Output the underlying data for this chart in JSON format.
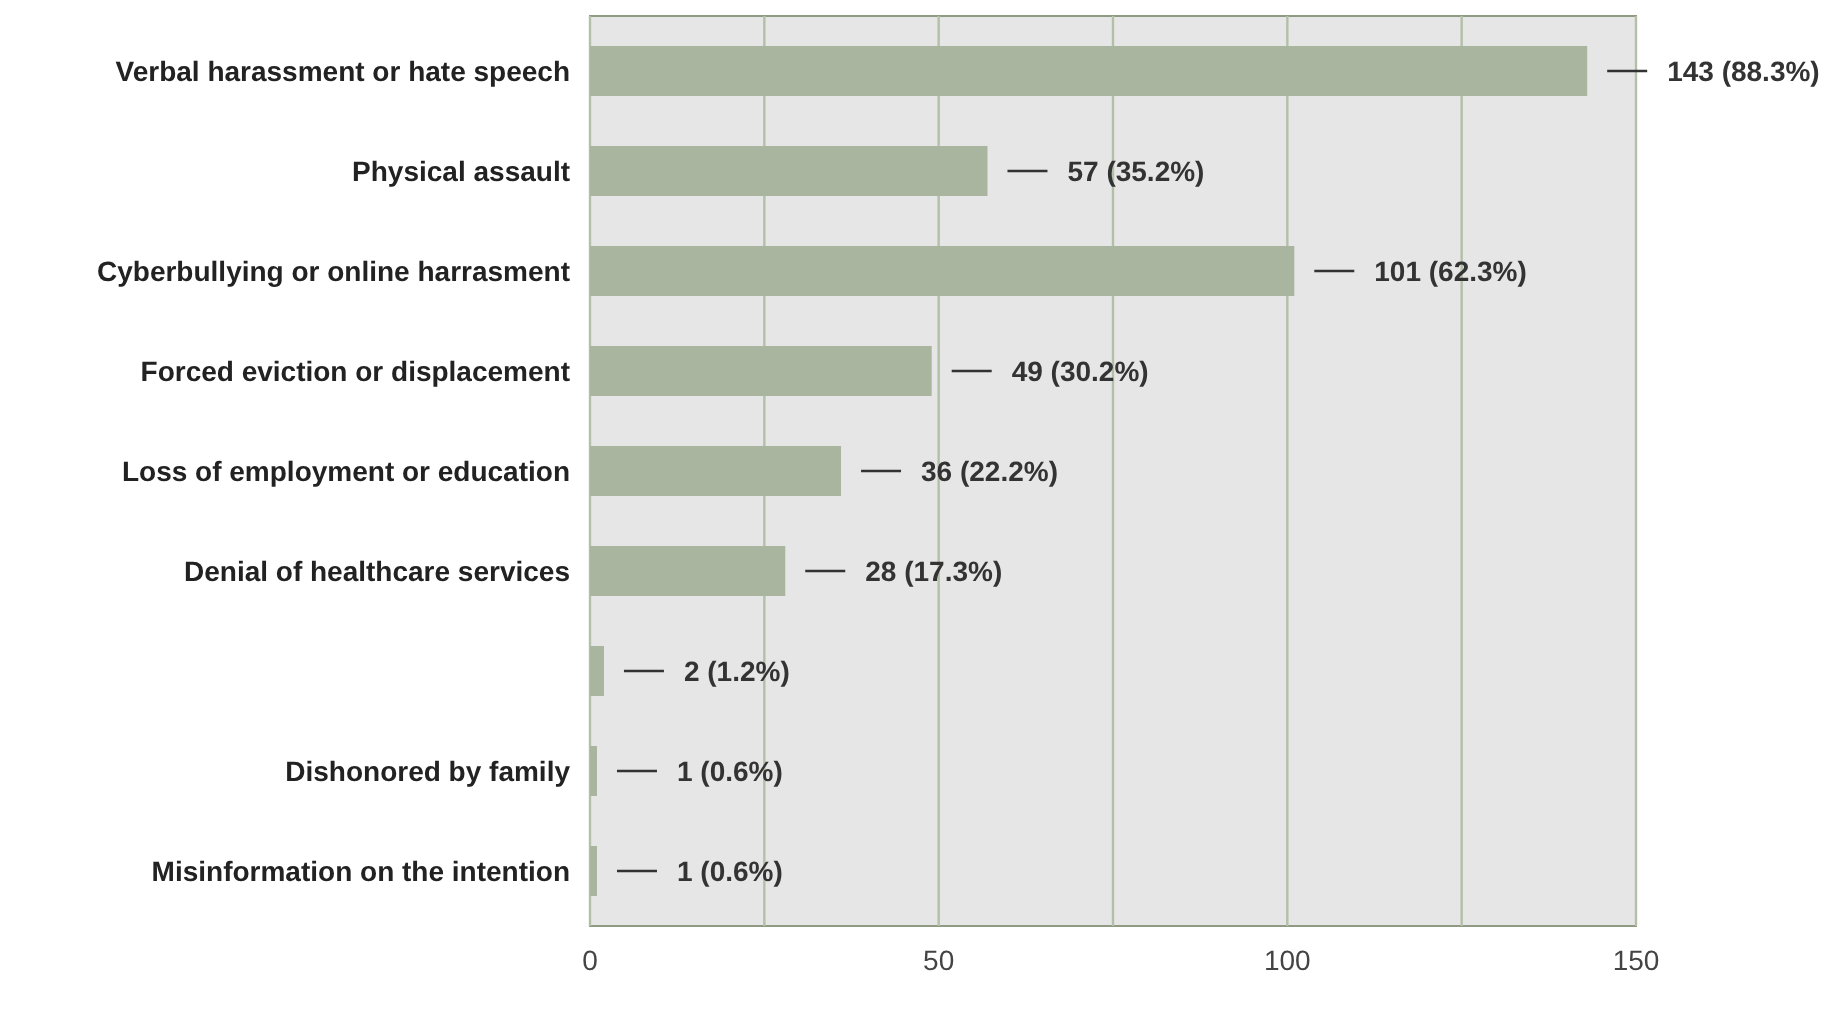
{
  "chart_data": {
    "type": "bar",
    "orientation": "horizontal",
    "categories": [
      "Verbal harassment or hate speech",
      "Physical assault",
      "Cyberbullying or online harrasment",
      "Forced eviction or displacement",
      "Loss of employment or education",
      "Denial of healthcare services",
      null,
      "Dishonored by family",
      "Misinformation on the intention"
    ],
    "values": [
      143,
      57,
      101,
      49,
      36,
      28,
      2,
      1,
      1
    ],
    "value_labels": [
      "143 (88.3%)",
      "57 (35.2%)",
      "101 (62.3%)",
      "49 (30.2%)",
      "36 (22.2%)",
      "28 (17.3%)",
      "2 (1.2%)",
      "1 (0.6%)",
      "1 (0.6%)"
    ],
    "color": "#a9b59f",
    "xlim": [
      0,
      150
    ],
    "xticks": [
      0,
      {
        "value": 25,
        "label": null
      },
      50,
      {
        "value": 75,
        "label": null
      },
      100,
      {
        "value": 125,
        "label": null
      },
      150
    ],
    "grid": "x"
  }
}
